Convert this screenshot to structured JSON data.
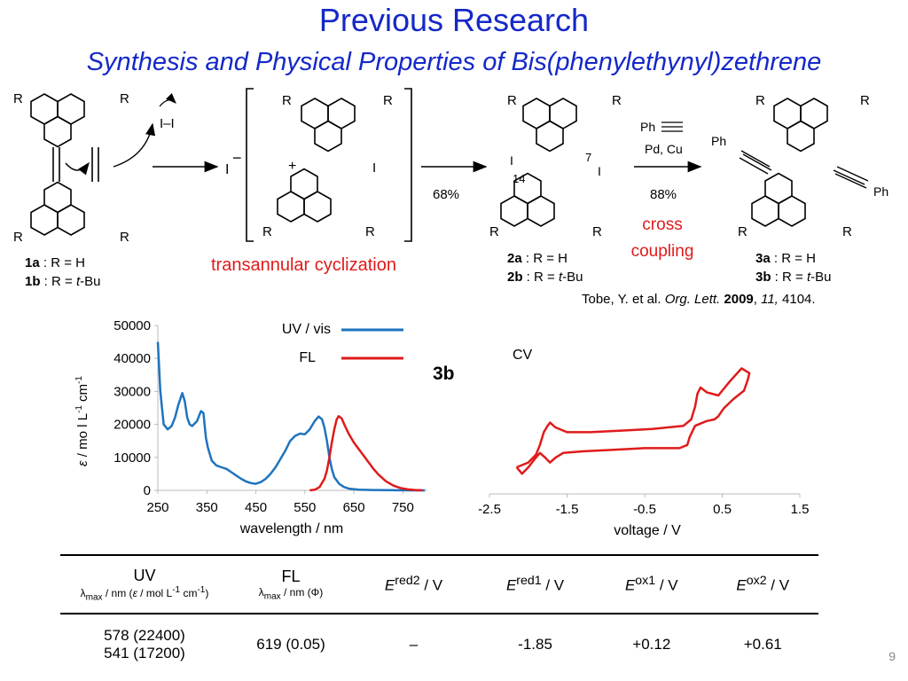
{
  "slide": {
    "title": "Previous Research",
    "subtitle": "Synthesis and Physical Properties of Bis(phenylethynyl)zethrene",
    "page_number": "9"
  },
  "scheme": {
    "R": "R",
    "I": "I",
    "I2_reagent": "I–I",
    "iodide_anion": "I",
    "cation_plus": "+",
    "iodide_minus": "−",
    "compound_1a_num": "1a",
    "compound_1a_text": " : R = H",
    "compound_1b_num": "1b",
    "compound_1b_text_pre": " : R = ",
    "compound_1b_text_t": "t",
    "compound_1b_text_post": "-Bu",
    "transannular_label": "transannular cyclization",
    "yield_1": "68%",
    "compound_2a_num": "2a",
    "compound_2a_text": " : R = H",
    "compound_2b_num": "2b",
    "compound_2b_text_pre": " : R = ",
    "compound_2b_text_t": "t",
    "compound_2b_text_post": "-Bu",
    "position_7": "7",
    "position_14": "14",
    "reagent_Ph": "Ph",
    "conditions": "Pd, Cu",
    "yield_2": "88%",
    "cross_coupling_line1": "cross",
    "cross_coupling_line2": "coupling",
    "Ph": "Ph",
    "compound_3a_num": "3a",
    "compound_3a_text": " : R = H",
    "compound_3b_num": "3b",
    "compound_3b_text_pre": " : R = ",
    "compound_3b_text_t": "t",
    "compound_3b_text_post": "-Bu",
    "reference_authors": "Tobe, Y. et al. ",
    "reference_journal": "Org. Lett.",
    "reference_year": "2009",
    "reference_volume": "11,",
    "reference_pages": " 4104."
  },
  "compound_label": "3b",
  "chart_data": [
    {
      "type": "line",
      "xlabel": "wavelength / nm",
      "ylabel": "ε / mo l L-1 cm-1",
      "ylabel_parts": {
        "eps": "ε",
        "mid": " / mo l L",
        "sup1": "-1",
        "cm": " cm",
        "sup2": "-1"
      },
      "xlim": [
        250,
        800
      ],
      "ylim": [
        0,
        50000
      ],
      "x_ticks": [
        "250",
        "350",
        "450",
        "550",
        "650",
        "750"
      ],
      "y_ticks": [
        "0",
        "10000",
        "20000",
        "30000",
        "40000",
        "50000"
      ],
      "legend_position": "top-center",
      "series": [
        {
          "name": "UV / vis",
          "color": "#1e73be",
          "x": [
            250,
            255,
            262,
            270,
            278,
            285,
            292,
            300,
            305,
            310,
            315,
            320,
            330,
            338,
            343,
            348,
            352,
            360,
            370,
            380,
            390,
            400,
            410,
            420,
            430,
            440,
            450,
            460,
            470,
            480,
            490,
            500,
            510,
            520,
            530,
            540,
            550,
            560,
            570,
            578,
            585,
            590,
            595,
            600,
            605,
            610,
            620,
            630,
            640,
            660,
            690,
            720,
            760,
            795
          ],
          "y": [
            45000,
            30000,
            20000,
            18500,
            19500,
            22000,
            26000,
            29500,
            27000,
            22000,
            20000,
            19500,
            21000,
            24000,
            23500,
            16000,
            13000,
            9000,
            7500,
            7000,
            6500,
            5500,
            4500,
            3500,
            2700,
            2200,
            2000,
            2500,
            3500,
            5000,
            7000,
            9500,
            12000,
            15000,
            16500,
            17200,
            17000,
            18500,
            21000,
            22400,
            21500,
            19000,
            15000,
            10000,
            6500,
            4000,
            2000,
            1000,
            500,
            200,
            100,
            50,
            0,
            0
          ]
        },
        {
          "name": "FL",
          "color": "#e01a1a",
          "x": [
            560,
            570,
            580,
            590,
            595,
            600,
            605,
            610,
            615,
            619,
            625,
            632,
            640,
            650,
            660,
            670,
            680,
            690,
            700,
            715,
            730,
            745,
            760,
            775,
            790
          ],
          "y": [
            0,
            200,
            1000,
            3500,
            6000,
            10000,
            14500,
            18500,
            21500,
            22500,
            21800,
            19500,
            17000,
            14500,
            12500,
            10500,
            8500,
            6500,
            4800,
            2800,
            1500,
            700,
            300,
            100,
            0
          ]
        }
      ]
    },
    {
      "type": "line",
      "title": "CV",
      "xlabel": "voltage / V",
      "xlim": [
        -2.5,
        1.5
      ],
      "x_ticks": [
        "-2.5",
        "-1.5",
        "-0.5",
        "0.5",
        "1.5"
      ],
      "y_ticks": [],
      "grid": false,
      "series": [
        {
          "name": "",
          "color": "#e01a1a",
          "x": [
            -2.15,
            -2.0,
            -1.9,
            -1.85,
            -1.8,
            -1.75,
            -1.72,
            -1.65,
            -1.5,
            -1.2,
            -0.8,
            -0.4,
            0.0,
            0.1,
            0.15,
            0.18,
            0.22,
            0.3,
            0.45,
            0.6,
            0.75,
            0.85,
            0.83,
            0.78,
            0.65,
            0.52,
            0.45,
            0.4,
            0.3,
            0.15,
            0.08,
            0.05,
            -0.05,
            -0.2,
            -0.5,
            -0.9,
            -1.3,
            -1.55,
            -1.65,
            -1.72,
            -1.78,
            -1.85,
            -1.92,
            -2.0,
            -2.08,
            -2.15
          ],
          "y": [
            2.0,
            2.3,
            2.8,
            3.4,
            4.2,
            4.6,
            4.8,
            4.5,
            4.2,
            4.2,
            4.3,
            4.4,
            4.6,
            5.0,
            5.8,
            6.6,
            7.0,
            6.7,
            6.5,
            7.4,
            8.2,
            7.9,
            7.5,
            6.8,
            6.3,
            5.7,
            5.2,
            5.0,
            4.9,
            4.6,
            3.9,
            3.4,
            3.2,
            3.2,
            3.2,
            3.1,
            3.0,
            2.9,
            2.6,
            2.3,
            2.6,
            2.9,
            2.5,
            2.0,
            1.6,
            2.0
          ]
        }
      ]
    }
  ],
  "table": {
    "headers": [
      {
        "main": "UV",
        "sub_lambda": "λ",
        "sub_max": "max",
        "sub_rest1": " / nm (",
        "sub_eps": "ε",
        "sub_rest2": " / mol L",
        "sup1": "-1",
        "sub_rest3": " cm",
        "sup2": "-1",
        "sub_rest4": ")"
      },
      {
        "main": "FL",
        "sub_lambda": "λ",
        "sub_max": "max",
        "sub_rest1": " / nm (",
        "sub_phi": "Φ",
        "sub_rest2": ")"
      },
      {
        "E": "E",
        "sup": "red2",
        "unit": " / V"
      },
      {
        "E": "E",
        "sup": "red1",
        "unit": " / V"
      },
      {
        "E": "E",
        "sup": "ox1",
        "unit": " / V"
      },
      {
        "E": "E",
        "sup": "ox2",
        "unit": " / V"
      }
    ],
    "row": {
      "uv_line1": "578 (22400)",
      "uv_line2": "541 (17200)",
      "fl": "619 (0.05)",
      "ered2": "–",
      "ered1": "-1.85",
      "eox1": "+0.12",
      "eox2": "+0.61"
    }
  }
}
